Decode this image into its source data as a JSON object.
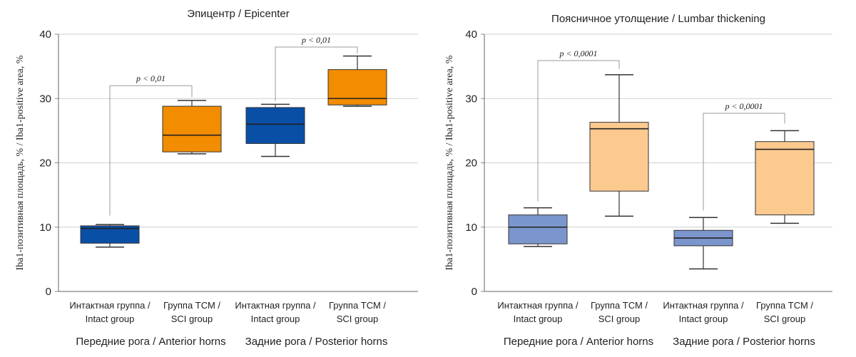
{
  "chart_data": [
    {
      "type": "box",
      "title": "Эпицентр / Epicenter",
      "ylabel": "Iba1-позитивная площадь, % / Iba1-positive area, %",
      "ylim": [
        0,
        40
      ],
      "yticks": [
        "0",
        "10",
        "20",
        "30",
        "40"
      ],
      "categories": [
        "Интактная группа / Intact group",
        "Группа ТСМ / SCI group",
        "Интактная группа / Intact group",
        "Группа ТСМ / SCI group"
      ],
      "category_lines": [
        [
          "Интактная группа /",
          "Intact group"
        ],
        [
          "Группа ТСМ /",
          "SCI group"
        ],
        [
          "Интактная группа /",
          "Intact group"
        ],
        [
          "Группа ТСМ /",
          "SCI group"
        ]
      ],
      "groups": [
        "Передние рога / Anterior horns",
        "Задние рога / Posterior horns"
      ],
      "grid": "horizontal",
      "boxes": [
        {
          "min": 6.9,
          "q1": 7.5,
          "median": 9.8,
          "q3": 10.2,
          "max": 10.4,
          "color": "#0a4fa6"
        },
        {
          "min": 21.4,
          "q1": 21.7,
          "median": 24.3,
          "q3": 28.8,
          "max": 29.7,
          "color": "#f28c00"
        },
        {
          "min": 21.0,
          "q1": 23.0,
          "median": 26.0,
          "q3": 28.6,
          "max": 29.1,
          "color": "#0a4fa6"
        },
        {
          "min": 28.8,
          "q1": 29.0,
          "median": 30.0,
          "q3": 34.5,
          "max": 36.6,
          "color": "#f28c00"
        }
      ],
      "comparisons": [
        {
          "from": 0,
          "to": 1,
          "label": "p < 0,01",
          "bracket": 32.0,
          "from_drop": 11.8,
          "to_drop": 30.2
        },
        {
          "from": 2,
          "to": 3,
          "label": "p < 0,01",
          "bracket": 38.0,
          "from_drop": 29.6,
          "to_drop": 37.0
        }
      ]
    },
    {
      "type": "box",
      "title": "Поясничное утолщение / Lumbar thickening",
      "ylabel": "Iba1-позитивная площадь, % / Iba1-positive area, %",
      "ylim": [
        0,
        40
      ],
      "yticks": [
        "0",
        "10",
        "20",
        "30",
        "40"
      ],
      "categories": [
        "Интактная группа / Intact group",
        "Группа ТСМ / SCI group",
        "Интактная группа / Intact group",
        "Группа ТСМ / SCI group"
      ],
      "category_lines": [
        [
          "Интактная группа /",
          "Intact group"
        ],
        [
          "Группа ТСМ /",
          "SCI group"
        ],
        [
          "Интактная группа /",
          "Intact group"
        ],
        [
          "Группа ТСМ /",
          "SCI group"
        ]
      ],
      "groups": [
        "Передние рога / Anterior horns",
        "Задние рога / Posterior horns"
      ],
      "grid": "horizontal",
      "boxes": [
        {
          "min": 7.0,
          "q1": 7.4,
          "median": 10.0,
          "q3": 11.9,
          "max": 13.0,
          "color": "#7b96cd"
        },
        {
          "min": 11.7,
          "q1": 15.6,
          "median": 25.3,
          "q3": 26.3,
          "max": 33.7,
          "color": "#fcc98f"
        },
        {
          "min": 3.5,
          "q1": 7.1,
          "median": 8.3,
          "q3": 9.5,
          "max": 11.5,
          "color": "#7b96cd"
        },
        {
          "min": 10.6,
          "q1": 11.9,
          "median": 22.1,
          "q3": 23.3,
          "max": 25.0,
          "color": "#fcc98f"
        }
      ],
      "comparisons": [
        {
          "from": 0,
          "to": 1,
          "label": "p < 0,0001",
          "bracket": 35.9,
          "from_drop": 14.0,
          "to_drop": 34.6
        },
        {
          "from": 2,
          "to": 3,
          "label": "p < 0,0001",
          "bracket": 27.7,
          "from_drop": 12.6,
          "to_drop": 26.1
        }
      ]
    }
  ]
}
